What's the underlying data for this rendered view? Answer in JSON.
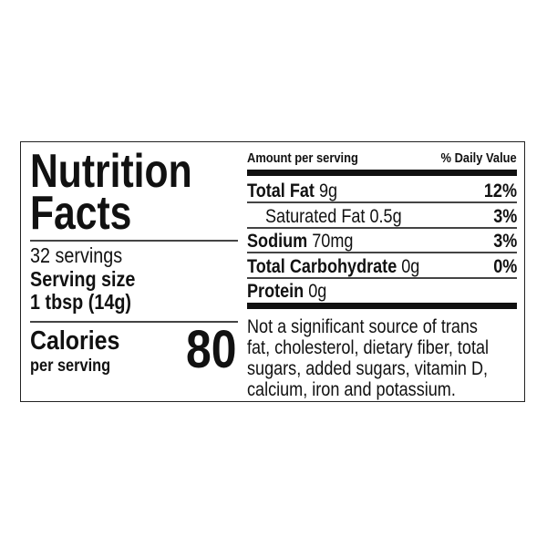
{
  "title_line1": "Nutrition",
  "title_line2": "Facts",
  "servings": "32 servings",
  "serving_size_label": "Serving size",
  "serving_size_value": "1 tbsp (14g)",
  "calories_label": "Calories",
  "calories_sub": "per serving",
  "calories_value": "80",
  "header": {
    "amount": "Amount per serving",
    "dv": "% Daily Value"
  },
  "nutrients": [
    {
      "name": "Total Fat",
      "amount": "9g",
      "dv": "12%"
    },
    {
      "name": "Saturated Fat",
      "amount": "0.5g",
      "dv": "3%"
    },
    {
      "name": "Sodium",
      "amount": "70mg",
      "dv": "3%"
    },
    {
      "name": "Total Carbohydrate",
      "amount": "0g",
      "dv": "0%"
    },
    {
      "name": "Protein",
      "amount": "0g"
    }
  ],
  "footnote": [
    "Not a significant source of trans",
    "fat, cholesterol, dietary fiber, total",
    "sugars, added sugars, vitamin D,",
    "calcium, iron and potassium."
  ]
}
